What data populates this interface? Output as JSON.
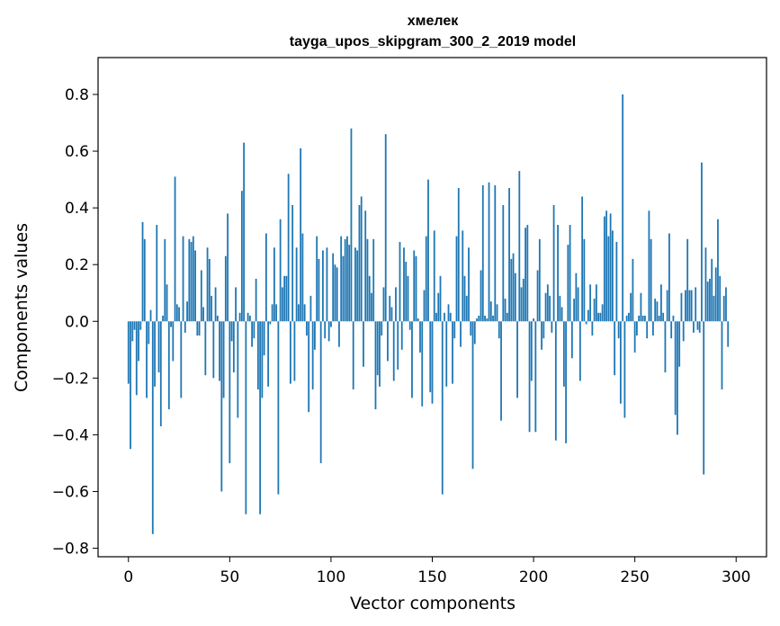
{
  "chart_data": {
    "type": "bar",
    "title_line1": "хмелек",
    "title_line2": "tayga_upos_skipgram_300_2_2019 model",
    "xlabel": "Vector components",
    "ylabel": "Components values",
    "xlim": [
      -15,
      315
    ],
    "ylim": [
      -0.83,
      0.93
    ],
    "xticks": [
      0,
      50,
      100,
      150,
      200,
      250,
      300
    ],
    "xtick_labels": [
      "0",
      "50",
      "100",
      "150",
      "200",
      "250",
      "300"
    ],
    "yticks": [
      -0.8,
      -0.6,
      -0.4,
      -0.2,
      0.0,
      0.2,
      0.4,
      0.6,
      0.8
    ],
    "ytick_labels": [
      "−0.8",
      "−0.6",
      "−0.4",
      "−0.2",
      "0.0",
      "0.2",
      "0.4",
      "0.6",
      "0.8"
    ],
    "bar_color": "#1f77b4",
    "values": [
      -0.22,
      -0.45,
      -0.07,
      -0.03,
      -0.26,
      -0.14,
      -0.03,
      0.35,
      0.29,
      -0.27,
      -0.08,
      0.04,
      -0.75,
      -0.23,
      0.34,
      -0.18,
      -0.37,
      0.02,
      0.29,
      0.13,
      -0.31,
      -0.02,
      -0.14,
      0.51,
      0.06,
      0.05,
      -0.27,
      0.3,
      -0.04,
      0.07,
      0.29,
      0.28,
      0.3,
      0.25,
      -0.05,
      -0.05,
      0.18,
      0.05,
      -0.19,
      0.26,
      0.22,
      0.09,
      -0.2,
      0.12,
      0.02,
      -0.21,
      -0.6,
      -0.27,
      0.23,
      0.38,
      -0.5,
      -0.07,
      -0.18,
      0.12,
      -0.34,
      0.03,
      0.46,
      0.63,
      -0.68,
      0.03,
      0.02,
      -0.09,
      -0.06,
      0.15,
      -0.24,
      -0.68,
      -0.27,
      -0.12,
      0.31,
      -0.23,
      -0.01,
      0.06,
      0.26,
      0.06,
      -0.61,
      0.36,
      0.12,
      0.16,
      0.16,
      0.52,
      -0.22,
      0.41,
      -0.21,
      0.26,
      0.06,
      0.61,
      0.31,
      0.06,
      -0.05,
      -0.32,
      0.09,
      -0.24,
      -0.1,
      0.3,
      0.22,
      -0.5,
      0.25,
      -0.06,
      0.26,
      -0.07,
      -0.02,
      0.24,
      0.2,
      0.19,
      -0.09,
      0.3,
      0.23,
      0.29,
      0.3,
      0.27,
      0.68,
      -0.24,
      0.26,
      0.25,
      0.41,
      0.44,
      -0.16,
      0.39,
      0.29,
      0.16,
      0.1,
      0.29,
      -0.31,
      -0.19,
      -0.23,
      -0.05,
      0.12,
      0.66,
      -0.14,
      0.09,
      0.05,
      -0.21,
      0.12,
      -0.17,
      0.28,
      -0.1,
      0.26,
      0.21,
      0.16,
      -0.03,
      -0.27,
      0.25,
      0.23,
      0.01,
      -0.11,
      -0.3,
      0.11,
      0.3,
      0.5,
      -0.25,
      -0.29,
      0.32,
      0.03,
      0.1,
      0.16,
      -0.61,
      0.03,
      -0.23,
      0.06,
      0.03,
      -0.22,
      -0.06,
      0.3,
      0.47,
      -0.09,
      0.32,
      0.16,
      0.09,
      0.26,
      -0.05,
      -0.52,
      -0.08,
      0.01,
      0.02,
      0.18,
      0.48,
      0.02,
      0.01,
      0.49,
      0.07,
      0.02,
      0.48,
      0.06,
      -0.06,
      -0.35,
      0.41,
      0.08,
      0.03,
      0.47,
      0.22,
      0.24,
      0.17,
      -0.27,
      0.53,
      0.12,
      0.15,
      0.33,
      0.34,
      -0.39,
      -0.21,
      0.01,
      -0.39,
      0.18,
      0.29,
      -0.1,
      -0.06,
      0.1,
      0.13,
      0.09,
      -0.04,
      0.41,
      -0.42,
      0.34,
      0.09,
      0.05,
      -0.23,
      -0.43,
      0.27,
      0.34,
      -0.13,
      0.08,
      0.17,
      0.12,
      -0.21,
      0.44,
      0.29,
      -0.01,
      0.04,
      0.13,
      -0.05,
      0.08,
      0.13,
      0.03,
      0.03,
      0.06,
      0.37,
      0.39,
      0.3,
      0.38,
      0.32,
      -0.19,
      0.28,
      -0.06,
      -0.29,
      0.8,
      -0.34,
      0.02,
      0.03,
      0.1,
      0.22,
      -0.11,
      -0.05,
      0.02,
      0.1,
      0.02,
      0.02,
      -0.06,
      0.39,
      0.29,
      -0.05,
      0.08,
      0.07,
      0.02,
      0.13,
      0.03,
      -0.18,
      0.11,
      0.31,
      -0.06,
      0.02,
      -0.33,
      -0.4,
      -0.16,
      0.1,
      -0.07,
      0.11,
      0.29,
      0.11,
      0.11,
      -0.04,
      0.12,
      -0.03,
      -0.04,
      0.56,
      -0.54,
      0.26,
      0.14,
      0.15,
      0.22,
      0.09,
      0.19,
      0.36,
      0.16,
      -0.24,
      0.09,
      0.12,
      -0.09
    ]
  }
}
